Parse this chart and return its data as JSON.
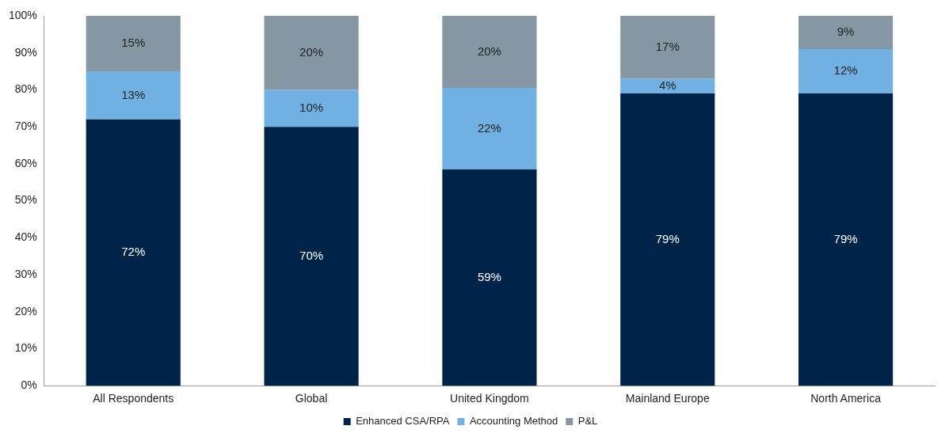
{
  "chart_data": {
    "type": "bar",
    "stacked": true,
    "categories": [
      "All Respondents",
      "Global",
      "United Kingdom",
      "Mainland Europe",
      "North America"
    ],
    "series": [
      {
        "name": "Enhanced CSA/RPA",
        "color": "#002449",
        "values": [
          72,
          70,
          58.5,
          79,
          79
        ],
        "value_labels": [
          "72%",
          "70%",
          "59%",
          "79%",
          "79%"
        ]
      },
      {
        "name": "Accounting Method",
        "color": "#71b0e3",
        "values": [
          13,
          10,
          22,
          4,
          12
        ],
        "value_labels": [
          "13%",
          "10%",
          "22%",
          "4%",
          "12%"
        ]
      },
      {
        "name": "P&L",
        "color": "#8497a3",
        "values": [
          15,
          20,
          19.5,
          17,
          9
        ],
        "value_labels": [
          "15%",
          "20%",
          "20%",
          "17%",
          "9%"
        ]
      }
    ],
    "ylim": [
      0,
      100
    ],
    "yticks": [
      {
        "value": 0,
        "label": "0%"
      },
      {
        "value": 10,
        "label": "10%"
      },
      {
        "value": 20,
        "label": "20%"
      },
      {
        "value": 30,
        "label": "30%"
      },
      {
        "value": 40,
        "label": "40%"
      },
      {
        "value": 50,
        "label": "50%"
      },
      {
        "value": 60,
        "label": "60%"
      },
      {
        "value": 70,
        "label": "70%"
      },
      {
        "value": 80,
        "label": "80%"
      },
      {
        "value": 90,
        "label": "90%"
      },
      {
        "value": 100,
        "label": "100%"
      }
    ],
    "grid": false,
    "legend": "bottom"
  }
}
